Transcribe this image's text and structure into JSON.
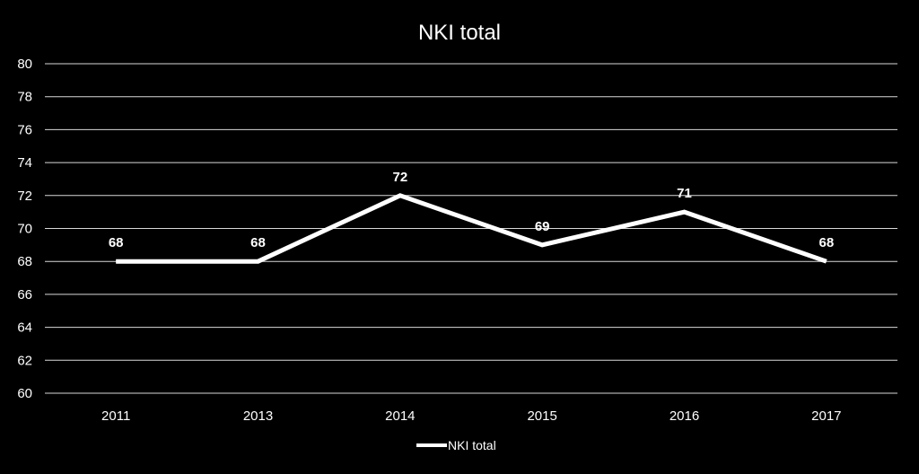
{
  "chart_data": {
    "type": "line",
    "title": "NKI total",
    "categories": [
      "2011",
      "2013",
      "2014",
      "2015",
      "2016",
      "2017"
    ],
    "series": [
      {
        "name": "NKI total",
        "values": [
          68,
          68,
          72,
          69,
          71,
          68
        ],
        "color": "#ffffff"
      }
    ],
    "data_labels": [
      "68",
      "68",
      "72",
      "69",
      "71",
      "68"
    ],
    "ylim": [
      60,
      80
    ],
    "y_ticks": [
      "60",
      "62",
      "64",
      "66",
      "68",
      "70",
      "72",
      "74",
      "76",
      "78",
      "80"
    ],
    "grid": true,
    "legend_position": "bottom",
    "background": "#000000"
  }
}
